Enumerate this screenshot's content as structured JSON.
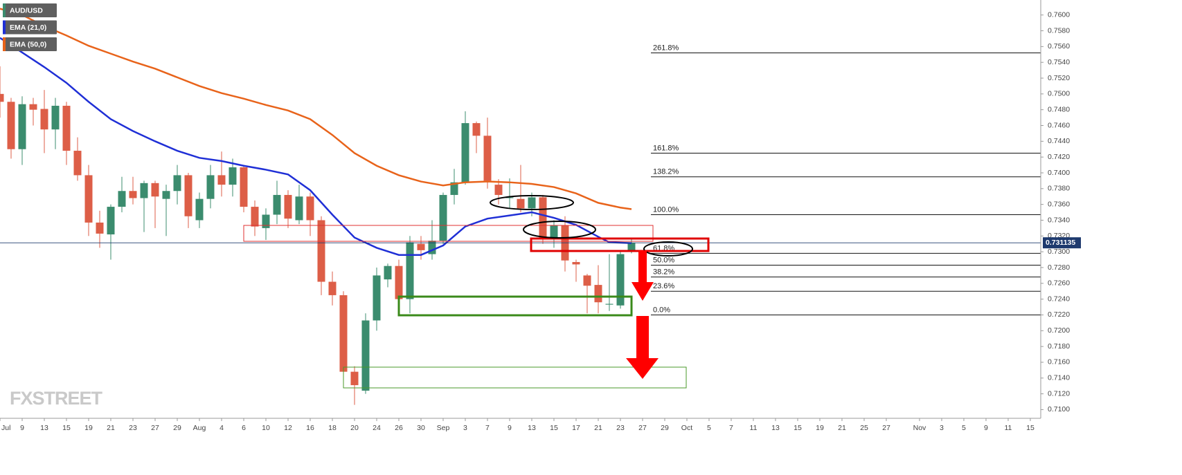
{
  "chart_data": {
    "type": "candlestick",
    "xlim": [
      4,
      97.94
    ],
    "ylim": [
      0.7089,
      0.7619
    ],
    "xticks": [
      {
        "value": 4,
        "label": "Jul"
      },
      {
        "value": 6,
        "label": "9"
      },
      {
        "value": 8,
        "label": "13"
      },
      {
        "value": 10,
        "label": "15"
      },
      {
        "value": 12,
        "label": "19"
      },
      {
        "value": 14,
        "label": "21"
      },
      {
        "value": 16,
        "label": "23"
      },
      {
        "value": 18,
        "label": "27"
      },
      {
        "value": 20,
        "label": "29"
      },
      {
        "value": 22,
        "label": "Aug"
      },
      {
        "value": 24,
        "label": "4"
      },
      {
        "value": 26,
        "label": "6"
      },
      {
        "value": 28,
        "label": "10"
      },
      {
        "value": 30,
        "label": "12"
      },
      {
        "value": 32,
        "label": "16"
      },
      {
        "value": 34,
        "label": "18"
      },
      {
        "value": 36,
        "label": "20"
      },
      {
        "value": 38,
        "label": "24"
      },
      {
        "value": 40,
        "label": "26"
      },
      {
        "value": 42,
        "label": "30"
      },
      {
        "value": 44,
        "label": "Sep"
      },
      {
        "value": 46,
        "label": "3"
      },
      {
        "value": 48,
        "label": "7"
      },
      {
        "value": 50,
        "label": "9"
      },
      {
        "value": 52,
        "label": "13"
      },
      {
        "value": 54,
        "label": "15"
      },
      {
        "value": 56,
        "label": "17"
      },
      {
        "value": 58,
        "label": "21"
      },
      {
        "value": 60,
        "label": "23"
      },
      {
        "value": 62,
        "label": "27"
      },
      {
        "value": 64,
        "label": "29"
      },
      {
        "value": 66,
        "label": "Oct"
      },
      {
        "value": 68,
        "label": "5"
      },
      {
        "value": 70,
        "label": "7"
      },
      {
        "value": 72,
        "label": "11"
      },
      {
        "value": 74,
        "label": "13"
      },
      {
        "value": 76,
        "label": "15"
      },
      {
        "value": 78,
        "label": "19"
      },
      {
        "value": 80,
        "label": "21"
      },
      {
        "value": 82,
        "label": "25"
      },
      {
        "value": 84,
        "label": "27"
      },
      {
        "value": 87,
        "label": "Nov"
      },
      {
        "value": 89,
        "label": "3"
      },
      {
        "value": 91,
        "label": "5"
      },
      {
        "value": 93,
        "label": "9"
      },
      {
        "value": 95,
        "label": "11"
      },
      {
        "value": 97,
        "label": "15"
      }
    ],
    "yticks": [
      {
        "value": 0.71,
        "label": "0.7100"
      },
      {
        "value": 0.712,
        "label": "0.7120"
      },
      {
        "value": 0.714,
        "label": "0.7140"
      },
      {
        "value": 0.716,
        "label": "0.7160"
      },
      {
        "value": 0.718,
        "label": "0.7180"
      },
      {
        "value": 0.72,
        "label": "0.7200"
      },
      {
        "value": 0.722,
        "label": "0.7220"
      },
      {
        "value": 0.724,
        "label": "0.7240"
      },
      {
        "value": 0.726,
        "label": "0.7260"
      },
      {
        "value": 0.728,
        "label": "0.7280"
      },
      {
        "value": 0.73,
        "label": "0.7300"
      },
      {
        "value": 0.732,
        "label": "0.7320"
      },
      {
        "value": 0.734,
        "label": "0.7340"
      },
      {
        "value": 0.736,
        "label": "0.7360"
      },
      {
        "value": 0.738,
        "label": "0.7380"
      },
      {
        "value": 0.74,
        "label": "0.7400"
      },
      {
        "value": 0.742,
        "label": "0.7420"
      },
      {
        "value": 0.744,
        "label": "0.7440"
      },
      {
        "value": 0.746,
        "label": "0.7460"
      },
      {
        "value": 0.748,
        "label": "0.7480"
      },
      {
        "value": 0.75,
        "label": "0.7500"
      },
      {
        "value": 0.752,
        "label": "0.7520"
      },
      {
        "value": 0.754,
        "label": "0.7540"
      },
      {
        "value": 0.756,
        "label": "0.7560"
      },
      {
        "value": 0.758,
        "label": "0.7580"
      },
      {
        "value": 0.76,
        "label": "0.7600"
      }
    ],
    "candles": {
      "name": "AUD/USD",
      "up_color": "#3b8c6e",
      "down_color": "#dd5e47",
      "x": [
        4,
        5,
        6,
        7,
        8,
        9,
        10,
        11,
        12,
        13,
        14,
        15,
        16,
        17,
        18,
        19,
        20,
        21,
        22,
        23,
        24,
        25,
        26,
        27,
        28,
        29,
        30,
        31,
        32,
        33,
        34,
        35,
        36,
        37,
        38,
        39,
        40,
        41,
        42,
        43,
        44,
        45,
        46,
        47,
        48,
        49,
        50,
        51,
        52,
        53,
        54,
        55,
        56,
        57,
        58,
        59,
        60,
        61
      ],
      "open": [
        0.75,
        0.749,
        0.743,
        0.7487,
        0.7481,
        0.7455,
        0.7485,
        0.7428,
        0.7397,
        0.7337,
        0.7322,
        0.7357,
        0.7377,
        0.7368,
        0.7387,
        0.7367,
        0.7377,
        0.7397,
        0.734,
        0.7367,
        0.7397,
        0.7385,
        0.7407,
        0.7357,
        0.733,
        0.7347,
        0.7372,
        0.734,
        0.737,
        0.734,
        0.7262,
        0.7245,
        0.7148,
        0.7124,
        0.7213,
        0.7265,
        0.7282,
        0.724,
        0.731,
        0.7297,
        0.7314,
        0.7372,
        0.7388,
        0.7463,
        0.7447,
        0.7385,
        0.7368,
        0.7367,
        0.7355,
        0.7369,
        0.7318,
        0.7333,
        0.7287,
        0.727,
        0.7258,
        0.7233,
        0.7232,
        0.73
      ],
      "high": [
        0.7535,
        0.7495,
        0.7497,
        0.7495,
        0.7505,
        0.7495,
        0.749,
        0.7445,
        0.741,
        0.7352,
        0.736,
        0.7395,
        0.7395,
        0.739,
        0.739,
        0.7385,
        0.741,
        0.74,
        0.7375,
        0.741,
        0.7427,
        0.7418,
        0.741,
        0.7365,
        0.7355,
        0.739,
        0.7378,
        0.7385,
        0.7375,
        0.7345,
        0.7275,
        0.725,
        0.7155,
        0.7222,
        0.728,
        0.7285,
        0.729,
        0.732,
        0.732,
        0.734,
        0.7375,
        0.7405,
        0.7478,
        0.7465,
        0.747,
        0.7392,
        0.7393,
        0.741,
        0.7375,
        0.7372,
        0.734,
        0.7345,
        0.729,
        0.7272,
        0.7283,
        0.7297,
        0.73,
        0.7318
      ],
      "low": [
        0.747,
        0.7418,
        0.741,
        0.746,
        0.7425,
        0.743,
        0.741,
        0.739,
        0.732,
        0.7305,
        0.729,
        0.735,
        0.736,
        0.7325,
        0.733,
        0.732,
        0.736,
        0.733,
        0.733,
        0.7355,
        0.737,
        0.737,
        0.735,
        0.732,
        0.7315,
        0.7335,
        0.733,
        0.7335,
        0.732,
        0.7245,
        0.7232,
        0.7145,
        0.7106,
        0.712,
        0.72,
        0.7255,
        0.7235,
        0.7222,
        0.729,
        0.729,
        0.731,
        0.736,
        0.7385,
        0.7425,
        0.738,
        0.736,
        0.7355,
        0.735,
        0.7345,
        0.731,
        0.7305,
        0.7275,
        0.7262,
        0.7222,
        0.7222,
        0.7225,
        0.7228,
        0.7298
      ],
      "close": [
        0.749,
        0.743,
        0.7487,
        0.748,
        0.7455,
        0.7485,
        0.7428,
        0.7397,
        0.7337,
        0.7323,
        0.7357,
        0.7377,
        0.7368,
        0.7387,
        0.737,
        0.7377,
        0.7397,
        0.7345,
        0.7367,
        0.7397,
        0.7385,
        0.7407,
        0.7357,
        0.7332,
        0.7347,
        0.7372,
        0.7342,
        0.737,
        0.734,
        0.7262,
        0.7245,
        0.7148,
        0.7131,
        0.7213,
        0.727,
        0.7282,
        0.724,
        0.7312,
        0.7302,
        0.7314,
        0.7372,
        0.7388,
        0.7463,
        0.7447,
        0.739,
        0.7372,
        0.7369,
        0.7355,
        0.7369,
        0.7318,
        0.7333,
        0.7289,
        0.7284,
        0.7257,
        0.7236,
        0.7234,
        0.7297,
        0.7311
      ]
    },
    "series": [
      {
        "name": "EMA (21,0)",
        "color": "#1f2fd6",
        "x": [
          4,
          8,
          10,
          12,
          14,
          16,
          18,
          20,
          22,
          24,
          26,
          28,
          30,
          32,
          34,
          36,
          38,
          40,
          42,
          44,
          46,
          48,
          50,
          52,
          54,
          56,
          58,
          59,
          61
        ],
        "values": [
          0.7571,
          0.7534,
          0.7514,
          0.749,
          0.7468,
          0.7453,
          0.744,
          0.7428,
          0.7419,
          0.7415,
          0.7409,
          0.7404,
          0.7398,
          0.7378,
          0.7347,
          0.7318,
          0.7305,
          0.7296,
          0.7296,
          0.7308,
          0.7332,
          0.7342,
          0.7346,
          0.735,
          0.7343,
          0.7334,
          0.7319,
          0.7312,
          0.7311
        ]
      },
      {
        "name": "EMA (50,0)",
        "color": "#e8631a",
        "x": [
          4,
          6,
          8,
          10,
          12,
          14,
          16,
          18,
          20,
          22,
          24,
          26,
          28,
          30,
          32,
          34,
          36,
          38,
          40,
          42,
          44,
          46,
          48,
          50,
          52,
          54,
          56,
          58,
          60,
          61
        ],
        "values": [
          0.7608,
          0.76,
          0.7586,
          0.7574,
          0.7561,
          0.7551,
          0.7541,
          0.7532,
          0.7521,
          0.751,
          0.7501,
          0.7494,
          0.7486,
          0.7479,
          0.7468,
          0.7448,
          0.7425,
          0.7409,
          0.7397,
          0.7389,
          0.7384,
          0.7388,
          0.7389,
          0.7388,
          0.7386,
          0.7382,
          0.7374,
          0.7362,
          0.7356,
          0.7354
        ]
      }
    ],
    "fib_levels": [
      {
        "label": "261.8%",
        "value": 0.7552
      },
      {
        "label": "161.8%",
        "value": 0.7425
      },
      {
        "label": "138.2%",
        "value": 0.7395
      },
      {
        "label": "100.0%",
        "value": 0.7347
      },
      {
        "label": "61.8%",
        "value": 0.7298
      },
      {
        "label": "50.0%",
        "value": 0.7283
      },
      {
        "label": "38.2%",
        "value": 0.7268
      },
      {
        "label": "23.6%",
        "value": 0.725
      },
      {
        "label": "0.0%",
        "value": 0.722
      }
    ],
    "last_price": 0.731135,
    "last_price_color": "#1e3a6e",
    "watermark": "FXSTREET"
  }
}
